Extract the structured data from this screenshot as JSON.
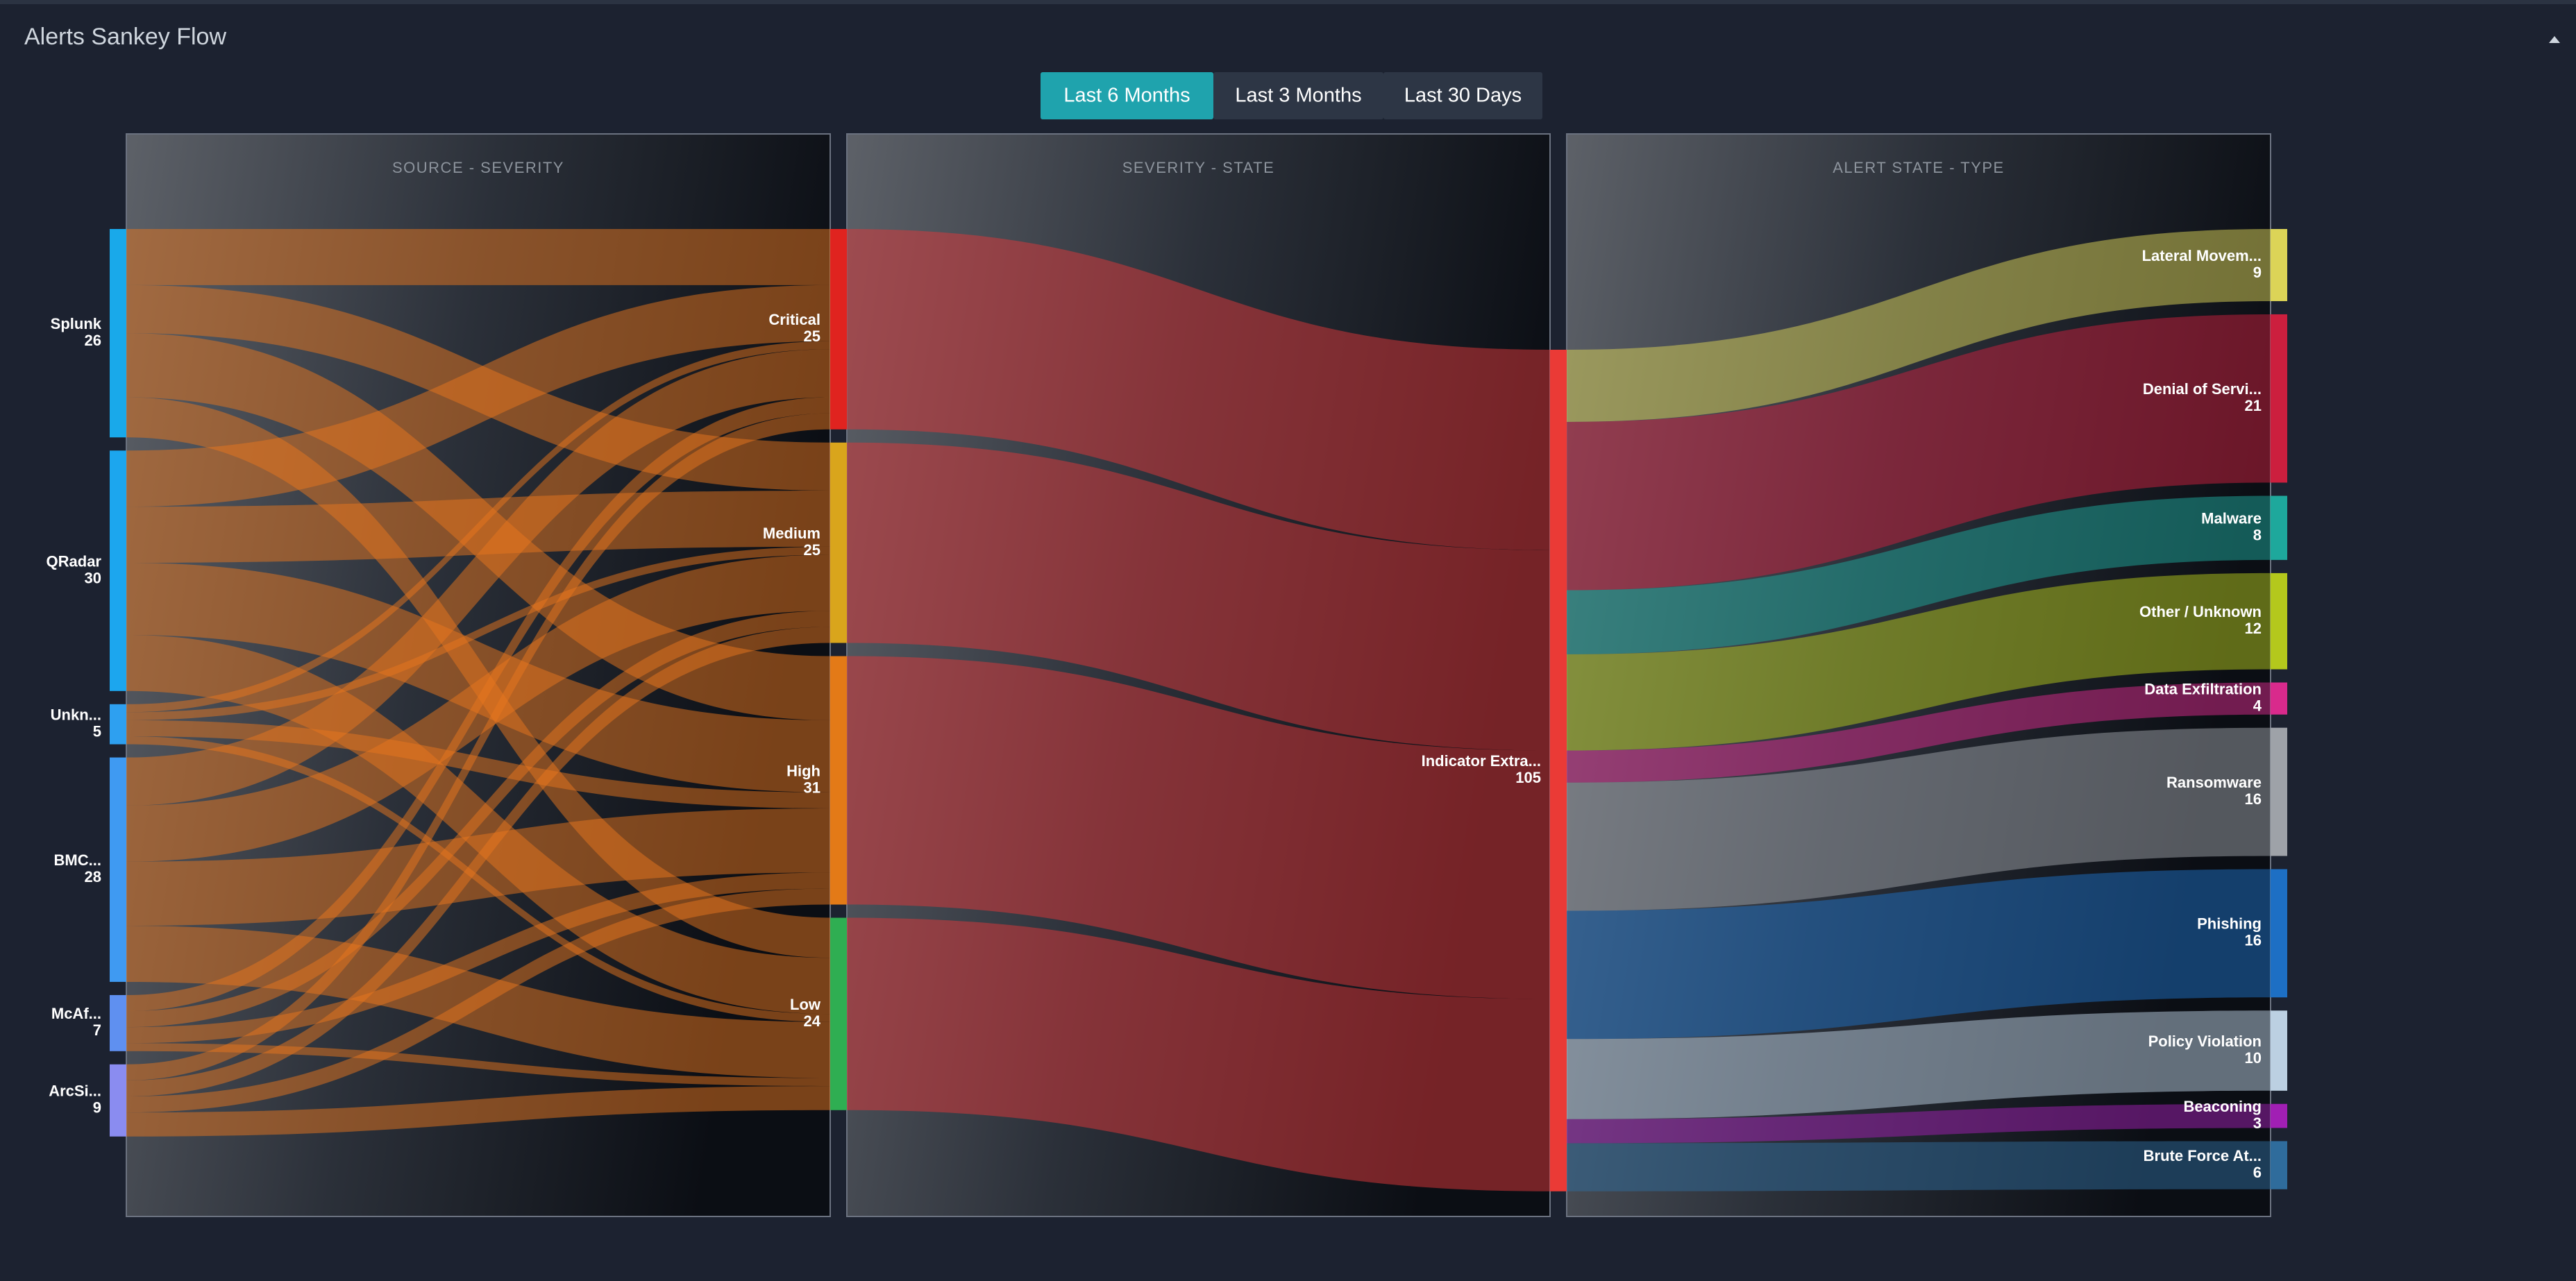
{
  "header": {
    "title": "Alerts Sankey Flow"
  },
  "controls": {
    "buttons": [
      "Last 6 Months",
      "Last 3 Months",
      "Last 30 Days"
    ],
    "active": 0
  },
  "chart_data": {
    "type": "sankey",
    "columns": [
      {
        "nodes": [
          {
            "name": "Splunk",
            "value": 26,
            "color": "#19a9ea"
          },
          {
            "name": "QRadar",
            "value": 30,
            "color": "#1ca6ee"
          },
          {
            "name": "Unkn...",
            "value": 5,
            "color": "#2ea0f0"
          },
          {
            "name": "BMC...",
            "value": 28,
            "color": "#3f9af2"
          },
          {
            "name": "McAf...",
            "value": 7,
            "color": "#5f90f0"
          },
          {
            "name": "ArcSi...",
            "value": 9,
            "color": "#8a8cf0"
          }
        ]
      },
      {
        "nodes": [
          {
            "name": "Critical",
            "value": 25,
            "color": "#e0231f"
          },
          {
            "name": "Medium",
            "value": 25,
            "color": "#d9a51c"
          },
          {
            "name": "High",
            "value": 31,
            "color": "#e37a17"
          },
          {
            "name": "Low",
            "value": 24,
            "color": "#2fae52"
          }
        ]
      },
      {
        "nodes": [
          {
            "name": "Indicator Extra...",
            "value": 105,
            "color": "#ea3a36"
          }
        ]
      },
      {
        "nodes": [
          {
            "name": "Lateral Movem...",
            "value": 9,
            "color": "#dcd457"
          },
          {
            "name": "Denial of Servi...",
            "value": 21,
            "color": "#cc1f3e"
          },
          {
            "name": "Malware",
            "value": 8,
            "color": "#1ea89c"
          },
          {
            "name": "Other / Unknown",
            "value": 12,
            "color": "#b4c81c"
          },
          {
            "name": "Data Exfiltration",
            "value": 4,
            "color": "#d92a8c"
          },
          {
            "name": "Ransomware",
            "value": 16,
            "color": "#9ea2a8"
          },
          {
            "name": "Phishing",
            "value": 16,
            "color": "#1d6fc4"
          },
          {
            "name": "Policy Violation",
            "value": 10,
            "color": "#bcd0e2"
          },
          {
            "name": "Beaconing",
            "value": 3,
            "color": "#a11fb4"
          },
          {
            "name": "Brute Force At...",
            "value": 6,
            "color": "#2f6c9c"
          }
        ]
      }
    ],
    "panels": [
      {
        "title": "SOURCE - SEVERITY",
        "link_color": "#e8761e",
        "links": [
          {
            "source": 0,
            "target": 0,
            "value": 7
          },
          {
            "source": 0,
            "target": 1,
            "value": 6
          },
          {
            "source": 0,
            "target": 2,
            "value": 8
          },
          {
            "source": 0,
            "target": 3,
            "value": 5
          },
          {
            "source": 1,
            "target": 0,
            "value": 7
          },
          {
            "source": 1,
            "target": 1,
            "value": 7
          },
          {
            "source": 1,
            "target": 2,
            "value": 9
          },
          {
            "source": 1,
            "target": 3,
            "value": 7
          },
          {
            "source": 2,
            "target": 0,
            "value": 1
          },
          {
            "source": 2,
            "target": 1,
            "value": 1
          },
          {
            "source": 2,
            "target": 2,
            "value": 2
          },
          {
            "source": 2,
            "target": 3,
            "value": 1
          },
          {
            "source": 3,
            "target": 0,
            "value": 6
          },
          {
            "source": 3,
            "target": 1,
            "value": 7
          },
          {
            "source": 3,
            "target": 2,
            "value": 8
          },
          {
            "source": 3,
            "target": 3,
            "value": 7
          },
          {
            "source": 4,
            "target": 0,
            "value": 2
          },
          {
            "source": 4,
            "target": 1,
            "value": 2
          },
          {
            "source": 4,
            "target": 2,
            "value": 2
          },
          {
            "source": 4,
            "target": 3,
            "value": 1
          },
          {
            "source": 5,
            "target": 0,
            "value": 2
          },
          {
            "source": 5,
            "target": 1,
            "value": 2
          },
          {
            "source": 5,
            "target": 2,
            "value": 2
          },
          {
            "source": 5,
            "target": 3,
            "value": 3
          }
        ]
      },
      {
        "title": "SEVERITY - STATE",
        "link_color": "#e0373a",
        "links": [
          {
            "source": 0,
            "target": 0,
            "value": 25
          },
          {
            "source": 1,
            "target": 0,
            "value": 25
          },
          {
            "source": 2,
            "target": 0,
            "value": 31
          },
          {
            "source": 3,
            "target": 0,
            "value": 24
          }
        ]
      },
      {
        "title": "ALERT STATE - TYPE",
        "link_color": "target",
        "links": [
          {
            "source": 0,
            "target": 0,
            "value": 9
          },
          {
            "source": 0,
            "target": 1,
            "value": 21
          },
          {
            "source": 0,
            "target": 2,
            "value": 8
          },
          {
            "source": 0,
            "target": 3,
            "value": 12
          },
          {
            "source": 0,
            "target": 4,
            "value": 4
          },
          {
            "source": 0,
            "target": 5,
            "value": 16
          },
          {
            "source": 0,
            "target": 6,
            "value": 16
          },
          {
            "source": 0,
            "target": 7,
            "value": 10
          },
          {
            "source": 0,
            "target": 8,
            "value": 3
          },
          {
            "source": 0,
            "target": 9,
            "value": 6
          }
        ]
      }
    ]
  }
}
